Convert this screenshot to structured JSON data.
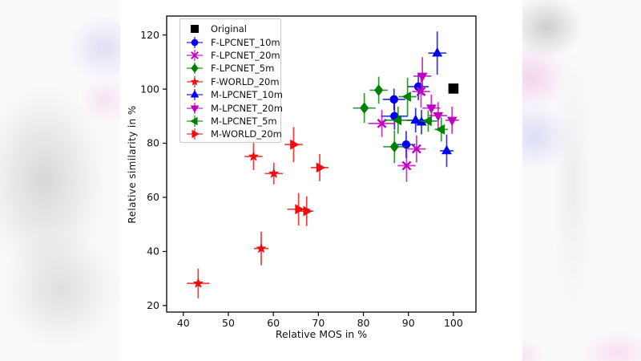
{
  "chart_data": {
    "type": "scatter",
    "title": "",
    "xlabel": "Relative MOS in %",
    "ylabel": "Relative similarity in %",
    "xlim": [
      36.3,
      105.0
    ],
    "ylim": [
      17.6,
      127.0
    ],
    "xticks": [
      40,
      50,
      60,
      70,
      80,
      90,
      100
    ],
    "yticks": [
      20,
      40,
      60,
      80,
      100,
      120
    ],
    "grid": false,
    "legend_position": "upper left",
    "point_format": [
      "x",
      "y",
      "xerr",
      "yerr"
    ],
    "series": [
      {
        "name": "Original",
        "color": "#000000",
        "marker": "square",
        "points": [
          [
            100.0,
            100.2,
            0,
            0
          ]
        ]
      },
      {
        "name": "F-LPCNET_10m",
        "color": "#0000ee",
        "marker": "circle",
        "points": [
          [
            92.2,
            100.9,
            2.3,
            5.0
          ],
          [
            86.8,
            96.2,
            2.5,
            4.0
          ],
          [
            86.9,
            90.0,
            3.0,
            5.0
          ],
          [
            89.5,
            79.5,
            2.0,
            5.0
          ]
        ]
      },
      {
        "name": "F-LPCNET_20m",
        "color": "#bf00bf",
        "marker": "x",
        "points": [
          [
            92.8,
            99.1,
            2.0,
            6.0
          ],
          [
            84.1,
            87.3,
            3.0,
            5.0
          ],
          [
            91.8,
            77.9,
            2.0,
            5.0
          ],
          [
            89.6,
            71.7,
            2.0,
            6.0
          ]
        ]
      },
      {
        "name": "F-LPCNET_5m",
        "color": "#008000",
        "marker": "diamond",
        "points": [
          [
            83.4,
            99.6,
            2.0,
            5.0
          ],
          [
            80.2,
            93.0,
            2.5,
            5.5
          ],
          [
            86.9,
            78.7,
            2.5,
            6.0
          ]
        ]
      },
      {
        "name": "F-WORLD_20m",
        "color": "#ee0e0e",
        "marker": "star",
        "points": [
          [
            43.3,
            28.2,
            2.5,
            5.5
          ],
          [
            57.3,
            41.1,
            1.6,
            6.2
          ],
          [
            55.6,
            75.1,
            2.0,
            5.0
          ],
          [
            60.1,
            68.8,
            2.0,
            4.0
          ]
        ]
      },
      {
        "name": "M-LPCNET_10m",
        "color": "#0000ee",
        "marker": "triangle-up",
        "points": [
          [
            96.4,
            113.3,
            2.0,
            8.0
          ],
          [
            91.6,
            88.5,
            2.0,
            4.5
          ],
          [
            92.9,
            87.8,
            2.0,
            4.5
          ],
          [
            98.5,
            77.2,
            1.5,
            6.0
          ]
        ]
      },
      {
        "name": "M-LPCNET_20m",
        "color": "#bf00bf",
        "marker": "triangle-down",
        "points": [
          [
            93.1,
            104.8,
            2.0,
            7.0
          ],
          [
            95.1,
            93.0,
            2.0,
            5.0
          ],
          [
            96.6,
            90.2,
            2.0,
            5.0
          ],
          [
            99.7,
            88.5,
            1.5,
            5.0
          ]
        ]
      },
      {
        "name": "M-LPCNET_5m",
        "color": "#008000",
        "marker": "triangle-left",
        "points": [
          [
            89.8,
            97.2,
            2.0,
            7.0
          ],
          [
            87.7,
            88.5,
            3.0,
            5.0
          ],
          [
            94.4,
            88.2,
            2.0,
            4.0
          ],
          [
            97.3,
            85.1,
            1.5,
            4.5
          ]
        ]
      },
      {
        "name": "M-WORLD_20m",
        "color": "#ee0e0e",
        "marker": "triangle-right",
        "points": [
          [
            64.5,
            79.5,
            2.0,
            6.5
          ],
          [
            70.3,
            71.0,
            2.0,
            5.0
          ],
          [
            65.6,
            55.6,
            2.5,
            6.0
          ],
          [
            67.4,
            54.9,
            1.5,
            5.5
          ]
        ]
      }
    ]
  }
}
